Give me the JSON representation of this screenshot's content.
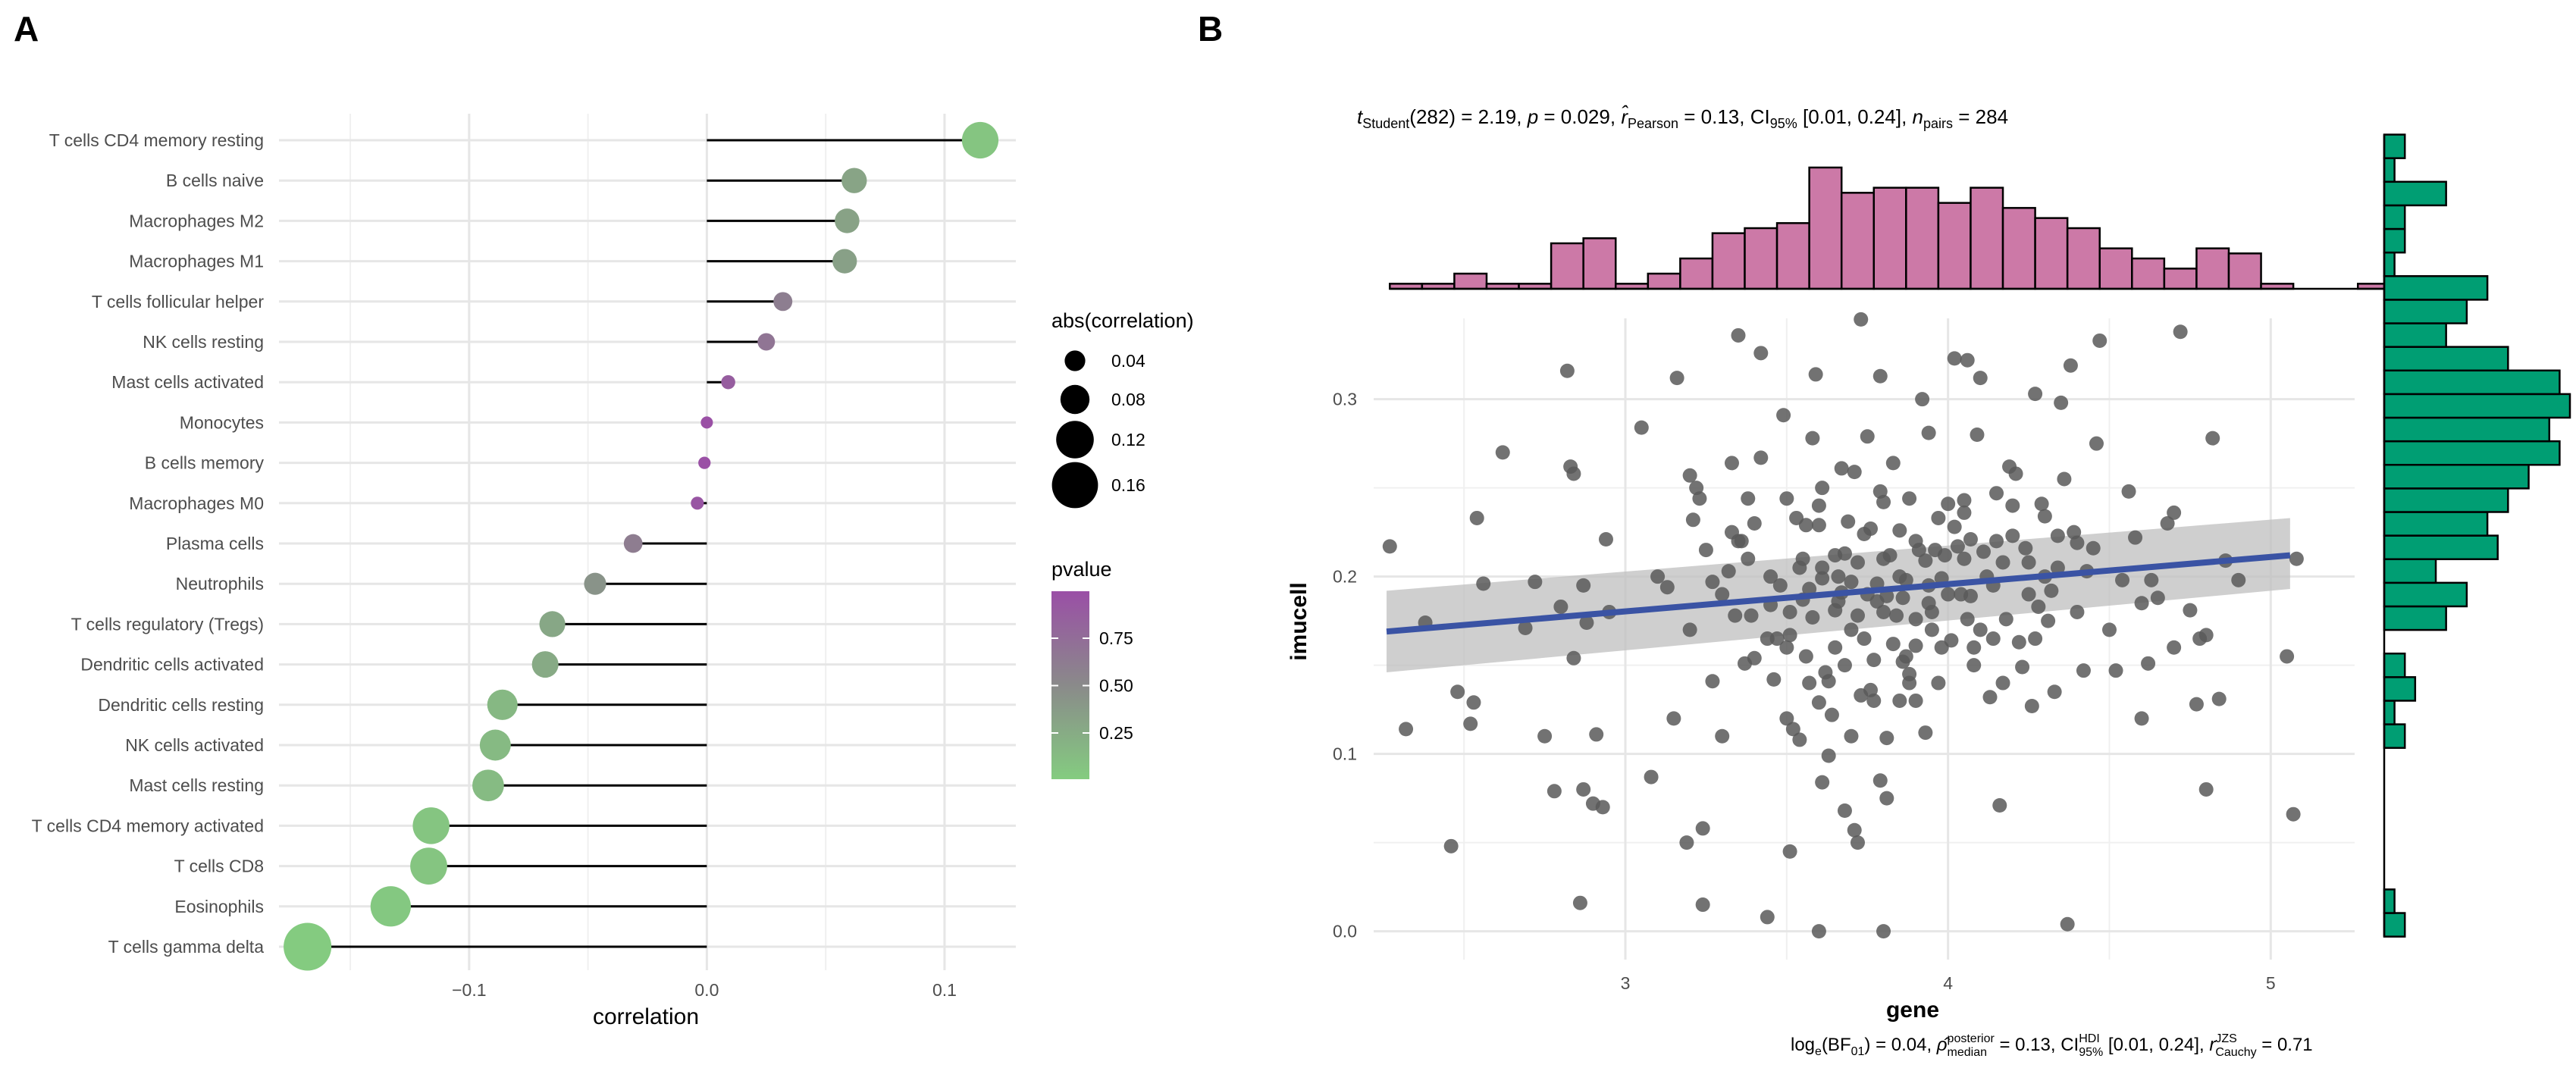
{
  "chart_data": [
    {
      "panel": "A",
      "type": "lollipop",
      "xlabel": "correlation",
      "xlim": [
        -0.18,
        0.13
      ],
      "xticks": [
        -0.1,
        0.0,
        0.1
      ],
      "xtick_labels": [
        "−0.1",
        "0.0",
        "0.1"
      ],
      "categories": [
        "T cells CD4 memory resting",
        "B cells naive",
        "Macrophages M2",
        "Macrophages M1",
        "T cells follicular helper",
        "NK cells resting",
        "Mast cells activated",
        "Monocytes",
        "B cells memory",
        "Macrophages M0",
        "Plasma cells",
        "Neutrophils",
        "T cells regulatory (Tregs)",
        "Dendritic cells activated",
        "Dendritic cells resting",
        "NK cells activated",
        "Mast cells resting",
        "T cells CD4 memory activated",
        "T cells CD8",
        "Eosinophils",
        "T cells gamma delta"
      ],
      "values": [
        0.115,
        0.062,
        0.059,
        0.058,
        0.032,
        0.025,
        0.009,
        0.0,
        -0.001,
        -0.004,
        -0.031,
        -0.047,
        -0.065,
        -0.068,
        -0.086,
        -0.089,
        -0.092,
        -0.116,
        -0.117,
        -0.133,
        -0.168
      ],
      "pvalues": [
        0.05,
        0.3,
        0.32,
        0.33,
        0.6,
        0.68,
        0.88,
        0.99,
        0.99,
        0.95,
        0.61,
        0.43,
        0.28,
        0.26,
        0.15,
        0.14,
        0.13,
        0.05,
        0.05,
        0.03,
        0.01
      ],
      "legend_size": {
        "title": "abs(correlation)",
        "values": [
          0.04,
          0.08,
          0.12,
          0.16
        ],
        "labels": [
          "0.04",
          "0.08",
          "0.12",
          "0.16"
        ]
      },
      "legend_color": {
        "title": "pvalue",
        "ticks": [
          0.25,
          0.5,
          0.75
        ],
        "labels": [
          "0.25",
          "0.50",
          "0.75"
        ],
        "low_color": "#84cc80",
        "mid_color": "#8a8a8a",
        "high_color": "#9a4fa6"
      }
    },
    {
      "panel": "B",
      "type": "scatter",
      "xlabel": "gene",
      "ylabel": "imucell",
      "xlim": [
        2.22,
        5.26
      ],
      "ylim": [
        -0.004,
        0.352
      ],
      "xticks": [
        3,
        4,
        5
      ],
      "xtick_labels": [
        "3",
        "4",
        "5"
      ],
      "yticks": [
        0.0,
        0.1,
        0.2,
        0.3
      ],
      "ytick_labels": [
        "0.0",
        "0.1",
        "0.2",
        "0.3"
      ],
      "n_pairs": 284,
      "fit": {
        "x": [
          2.26,
          5.06
        ],
        "y": [
          0.169,
          0.212
        ],
        "ci_low": [
          0.146,
          0.193
        ],
        "ci_high": [
          0.192,
          0.233
        ]
      },
      "point_color": "#595959",
      "line_color": "#3a53a4",
      "x_hist_color": "#cc79a7",
      "y_hist_color": "#009e73",
      "x_hist": {
        "bin_start": 2.27,
        "bin_width": 0.1,
        "counts": [
          1,
          1,
          3,
          1,
          1,
          9,
          10,
          1,
          3,
          6,
          11,
          12,
          13,
          24,
          19,
          20,
          20,
          17,
          20,
          16,
          14,
          12,
          8,
          6,
          4,
          8,
          7,
          1,
          0,
          0,
          1
        ]
      },
      "y_hist": {
        "bin_start": -0.003,
        "bin_width": 0.0133,
        "counts": [
          2,
          1,
          0,
          0,
          0,
          0,
          0,
          0,
          2,
          1,
          3,
          2,
          0,
          6,
          8,
          5,
          11,
          10,
          12,
          14,
          17,
          16,
          18,
          17,
          12,
          6,
          8,
          10,
          1,
          2,
          2,
          6,
          1,
          2
        ]
      },
      "points": [
        [
          2.27,
          0.217
        ],
        [
          2.32,
          0.114
        ],
        [
          2.38,
          0.174
        ],
        [
          2.46,
          0.048
        ],
        [
          2.48,
          0.135
        ],
        [
          2.52,
          0.117
        ],
        [
          2.53,
          0.129
        ],
        [
          2.54,
          0.233
        ],
        [
          2.56,
          0.196
        ],
        [
          2.62,
          0.27
        ],
        [
          2.69,
          0.171
        ],
        [
          2.72,
          0.197
        ],
        [
          2.78,
          0.079
        ],
        [
          2.8,
          0.183
        ],
        [
          2.82,
          0.316
        ],
        [
          2.83,
          0.262
        ],
        [
          2.84,
          0.258
        ],
        [
          2.84,
          0.154
        ],
        [
          2.86,
          0.016
        ],
        [
          2.87,
          0.195
        ],
        [
          2.87,
          0.08
        ],
        [
          2.88,
          0.174
        ],
        [
          2.9,
          0.072
        ],
        [
          2.91,
          0.111
        ],
        [
          2.93,
          0.07
        ],
        [
          2.94,
          0.221
        ],
        [
          3.05,
          0.284
        ],
        [
          3.08,
          0.087
        ],
        [
          3.13,
          0.194
        ],
        [
          3.16,
          0.312
        ],
        [
          3.19,
          0.05
        ],
        [
          3.2,
          0.257
        ],
        [
          3.21,
          0.232
        ],
        [
          3.22,
          0.25
        ],
        [
          3.23,
          0.244
        ],
        [
          3.24,
          0.058
        ],
        [
          3.24,
          0.015
        ],
        [
          3.25,
          0.215
        ],
        [
          3.27,
          0.197
        ],
        [
          3.32,
          0.203
        ],
        [
          3.33,
          0.264
        ],
        [
          3.33,
          0.225
        ],
        [
          3.35,
          0.336
        ],
        [
          3.36,
          0.22
        ],
        [
          3.37,
          0.151
        ],
        [
          3.38,
          0.244
        ],
        [
          3.38,
          0.21
        ],
        [
          3.39,
          0.178
        ],
        [
          3.4,
          0.154
        ],
        [
          3.42,
          0.267
        ],
        [
          3.42,
          0.326
        ],
        [
          3.44,
          0.165
        ],
        [
          3.44,
          0.008
        ],
        [
          3.45,
          0.184
        ],
        [
          3.46,
          0.142
        ],
        [
          3.48,
          0.195
        ],
        [
          3.49,
          0.291
        ],
        [
          3.5,
          0.244
        ],
        [
          3.51,
          0.18
        ],
        [
          3.51,
          0.167
        ],
        [
          3.52,
          0.114
        ],
        [
          3.53,
          0.233
        ],
        [
          3.54,
          0.108
        ],
        [
          3.55,
          0.187
        ],
        [
          3.56,
          0.155
        ],
        [
          3.56,
          0.229
        ],
        [
          3.57,
          0.193
        ],
        [
          3.58,
          0.177
        ],
        [
          3.58,
          0.278
        ],
        [
          3.59,
          0.314
        ],
        [
          3.6,
          0.129
        ],
        [
          3.6,
          0.229
        ],
        [
          3.61,
          0.25
        ],
        [
          3.61,
          0.199
        ],
        [
          3.61,
          0.205
        ],
        [
          3.62,
          0.146
        ],
        [
          3.63,
          0.099
        ],
        [
          3.63,
          0.141
        ],
        [
          3.64,
          0.122
        ],
        [
          3.65,
          0.181
        ],
        [
          3.65,
          0.212
        ],
        [
          3.66,
          0.2
        ],
        [
          3.66,
          0.186
        ],
        [
          3.67,
          0.261
        ],
        [
          3.68,
          0.213
        ],
        [
          3.68,
          0.068
        ],
        [
          3.69,
          0.231
        ],
        [
          3.7,
          0.197
        ],
        [
          3.71,
          0.259
        ],
        [
          3.72,
          0.178
        ],
        [
          3.72,
          0.208
        ],
        [
          3.73,
          0.345
        ],
        [
          3.73,
          0.133
        ],
        [
          3.74,
          0.224
        ],
        [
          3.75,
          0.279
        ],
        [
          3.76,
          0.227
        ],
        [
          3.76,
          0.136
        ],
        [
          3.77,
          0.153
        ],
        [
          3.78,
          0.196
        ],
        [
          3.78,
          0.186
        ],
        [
          3.79,
          0.313
        ],
        [
          3.79,
          0.248
        ],
        [
          3.8,
          0.18
        ],
        [
          3.8,
          0.242
        ],
        [
          3.81,
          0.109
        ],
        [
          3.81,
          0.189
        ],
        [
          3.82,
          0.212
        ],
        [
          3.83,
          0.264
        ],
        [
          3.83,
          0.162
        ],
        [
          3.84,
          0.178
        ],
        [
          3.85,
          0.13
        ],
        [
          3.85,
          0.226
        ],
        [
          3.86,
          0.152
        ],
        [
          3.86,
          0.188
        ],
        [
          3.87,
          0.198
        ],
        [
          3.88,
          0.145
        ],
        [
          3.88,
          0.244
        ],
        [
          3.9,
          0.161
        ],
        [
          3.9,
          0.176
        ],
        [
          3.91,
          0.215
        ],
        [
          3.92,
          0.3
        ],
        [
          3.93,
          0.112
        ],
        [
          3.93,
          0.209
        ],
        [
          3.94,
          0.195
        ],
        [
          3.94,
          0.281
        ],
        [
          3.95,
          0.18
        ],
        [
          3.96,
          0.215
        ],
        [
          3.97,
          0.233
        ],
        [
          3.98,
          0.199
        ],
        [
          3.99,
          0.212
        ],
        [
          4.0,
          0.241
        ],
        [
          4.01,
          0.164
        ],
        [
          4.02,
          0.228
        ],
        [
          4.02,
          0.323
        ],
        [
          4.03,
          0.217
        ],
        [
          4.04,
          0.19
        ],
        [
          4.05,
          0.236
        ],
        [
          4.05,
          0.243
        ],
        [
          4.06,
          0.176
        ],
        [
          4.06,
          0.322
        ],
        [
          4.07,
          0.221
        ],
        [
          4.08,
          0.16
        ],
        [
          4.09,
          0.28
        ],
        [
          4.1,
          0.312
        ],
        [
          4.11,
          0.214
        ],
        [
          4.12,
          0.2
        ],
        [
          4.13,
          0.132
        ],
        [
          4.14,
          0.195
        ],
        [
          4.15,
          0.247
        ],
        [
          4.16,
          0.071
        ],
        [
          4.17,
          0.208
        ],
        [
          4.18,
          0.176
        ],
        [
          4.19,
          0.262
        ],
        [
          4.2,
          0.223
        ],
        [
          4.21,
          0.258
        ],
        [
          4.22,
          0.163
        ],
        [
          4.23,
          0.149
        ],
        [
          4.24,
          0.216
        ],
        [
          4.25,
          0.208
        ],
        [
          4.26,
          0.127
        ],
        [
          4.27,
          0.303
        ],
        [
          4.28,
          0.183
        ],
        [
          4.29,
          0.241
        ],
        [
          4.3,
          0.234
        ],
        [
          4.31,
          0.175
        ],
        [
          4.32,
          0.192
        ],
        [
          4.33,
          0.135
        ],
        [
          4.34,
          0.223
        ],
        [
          4.35,
          0.298
        ],
        [
          4.36,
          0.255
        ],
        [
          4.37,
          0.004
        ],
        [
          4.38,
          0.319
        ],
        [
          4.39,
          0.225
        ],
        [
          4.4,
          0.219
        ],
        [
          4.42,
          0.147
        ],
        [
          4.43,
          0.203
        ],
        [
          4.45,
          0.216
        ],
        [
          4.46,
          0.275
        ],
        [
          4.47,
          0.333
        ],
        [
          4.5,
          0.17
        ],
        [
          4.52,
          0.147
        ],
        [
          4.54,
          0.198
        ],
        [
          4.56,
          0.248
        ],
        [
          4.58,
          0.222
        ],
        [
          4.6,
          0.185
        ],
        [
          4.62,
          0.151
        ],
        [
          4.63,
          0.198
        ],
        [
          4.65,
          0.188
        ],
        [
          4.68,
          0.23
        ],
        [
          4.7,
          0.236
        ],
        [
          4.72,
          0.338
        ],
        [
          4.75,
          0.181
        ],
        [
          4.77,
          0.128
        ],
        [
          4.78,
          0.165
        ],
        [
          4.8,
          0.167
        ],
        [
          4.82,
          0.278
        ],
        [
          4.84,
          0.131
        ],
        [
          4.86,
          0.209
        ],
        [
          4.9,
          0.198
        ],
        [
          5.05,
          0.155
        ],
        [
          5.07,
          0.066
        ],
        [
          5.08,
          0.21
        ],
        [
          3.1,
          0.2
        ],
        [
          3.3,
          0.19
        ],
        [
          3.5,
          0.16
        ],
        [
          3.7,
          0.17
        ],
        [
          3.9,
          0.22
        ],
        [
          4.1,
          0.17
        ],
        [
          4.3,
          0.2
        ],
        [
          3.4,
          0.23
        ],
        [
          3.6,
          0.24
        ],
        [
          3.8,
          0.21
        ],
        [
          4.0,
          0.19
        ],
        [
          4.2,
          0.24
        ],
        [
          4.4,
          0.18
        ],
        [
          3.2,
          0.17
        ],
        [
          3.55,
          0.21
        ],
        [
          3.75,
          0.19
        ],
        [
          3.95,
          0.17
        ],
        [
          4.15,
          0.22
        ],
        [
          3.45,
          0.2
        ],
        [
          3.65,
          0.16
        ],
        [
          3.85,
          0.2
        ],
        [
          4.05,
          0.21
        ],
        [
          4.25,
          0.19
        ],
        [
          3.35,
          0.22
        ],
        [
          3.57,
          0.14
        ],
        [
          3.77,
          0.13
        ],
        [
          3.97,
          0.14
        ],
        [
          4.17,
          0.14
        ],
        [
          3.6,
          0.0
        ],
        [
          3.8,
          0.0
        ],
        [
          3.3,
          0.11
        ],
        [
          3.5,
          0.12
        ],
        [
          3.7,
          0.11
        ],
        [
          3.9,
          0.13
        ],
        [
          3.98,
          0.16
        ],
        [
          3.68,
          0.15
        ],
        [
          3.88,
          0.14
        ],
        [
          4.08,
          0.15
        ],
        [
          2.75,
          0.11
        ],
        [
          2.95,
          0.18
        ],
        [
          3.15,
          0.12
        ],
        [
          4.6,
          0.12
        ],
        [
          4.7,
          0.16
        ],
        [
          4.8,
          0.08
        ],
        [
          3.34,
          0.178
        ],
        [
          3.54,
          0.205
        ],
        [
          3.74,
          0.165
        ],
        [
          3.94,
          0.185
        ],
        [
          4.14,
          0.165
        ],
        [
          4.34,
          0.205
        ],
        [
          3.27,
          0.141
        ],
        [
          3.47,
          0.165
        ],
        [
          3.67,
          0.191
        ],
        [
          3.87,
          0.155
        ],
        [
          4.07,
          0.189
        ],
        [
          4.27,
          0.165
        ],
        [
          3.51,
          0.045
        ],
        [
          3.71,
          0.057
        ],
        [
          3.72,
          0.05
        ],
        [
          3.79,
          0.085
        ],
        [
          3.61,
          0.084
        ],
        [
          3.81,
          0.075
        ]
      ]
    }
  ],
  "panels": {
    "a": {
      "label": "A"
    },
    "b": {
      "label": "B"
    }
  },
  "stats_top": {
    "t_sym": "t",
    "t_sub": "Student",
    "t_rest": "(282) = 2.19, ",
    "p_sym": "p",
    "p_rest": " = 0.029, ",
    "r_sym": "r̂",
    "r_sub": "Pearson",
    "r_rest": " = 0.13, CI",
    "ci_sub": "95%",
    "ci_rest": " [0.01, 0.24], ",
    "n_sym": "n",
    "n_sub": "pairs",
    "n_rest": " = 284"
  },
  "stats_bottom": {
    "log": "log",
    "log_sub": "e",
    "bf": "(BF",
    "bf_sub": "01",
    "bf_rest": ") = 0.04, ",
    "rho": "ρ̂",
    "rho_sub": "median",
    "rho_sup": "posterior",
    "rho_rest": " = 0.13, CI",
    "ci_sub": "95%",
    "ci_sup": "HDI",
    "ci_rest": " [0.01, 0.24], ",
    "r": "r",
    "r_sub": "Cauchy",
    "r_sup": "JZS",
    "r_rest": " = 0.71"
  }
}
